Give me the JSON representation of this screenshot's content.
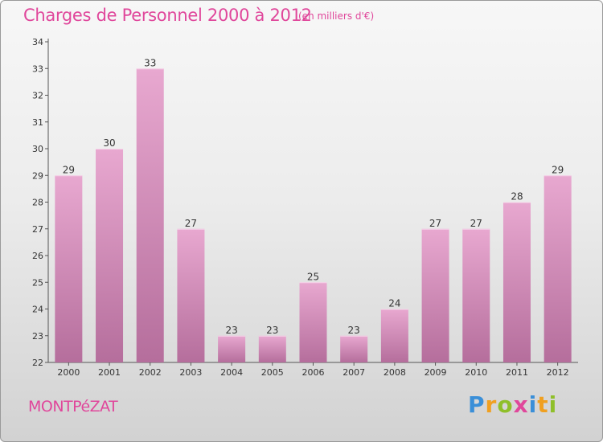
{
  "header": {
    "title": "Charges de Personnel 2000 à 2012",
    "subtitle": "(en milliers d'€)"
  },
  "footer": {
    "place": "MONTPéZAT",
    "brand_letters": [
      {
        "ch": "P",
        "color": "#3a8fd8"
      },
      {
        "ch": "r",
        "color": "#f0a020"
      },
      {
        "ch": "o",
        "color": "#8fbf2a"
      },
      {
        "ch": "x",
        "color": "#e0479b"
      },
      {
        "ch": "i",
        "color": "#3a8fd8"
      },
      {
        "ch": "t",
        "color": "#f0a020"
      },
      {
        "ch": "i",
        "color": "#8fbf2a"
      }
    ]
  },
  "colors": {
    "bar_top": "#e8a8d0",
    "bar_bottom": "#b56e9c",
    "accent": "#e0479b"
  },
  "chart_data": {
    "type": "bar",
    "title": "Charges de Personnel 2000 à 2012",
    "subtitle": "(en milliers d'€)",
    "categories": [
      "2000",
      "2001",
      "2002",
      "2003",
      "2004",
      "2005",
      "2006",
      "2007",
      "2008",
      "2009",
      "2010",
      "2011",
      "2012"
    ],
    "values": [
      29,
      30,
      33,
      27,
      23,
      23,
      25,
      23,
      24,
      27,
      27,
      28,
      29
    ],
    "ylim": [
      22,
      34
    ],
    "yticks": [
      22,
      23,
      24,
      25,
      26,
      27,
      28,
      29,
      30,
      31,
      32,
      33,
      34
    ],
    "xlabel": "",
    "ylabel": "",
    "grid": false,
    "data_labels": true
  }
}
